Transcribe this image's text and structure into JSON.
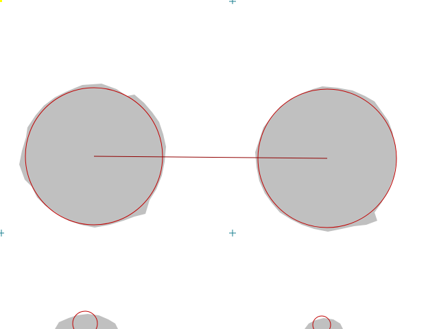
{
  "colors": {
    "background": "#ffffff",
    "blob_fill": "#c0c0c0",
    "fit_circle_stroke": "#c00000",
    "link_line_stroke": "#900000",
    "crosshair_stroke": "#1a7f8f",
    "corner_marker": "#ffff00"
  },
  "icons": {
    "crosshair": "crosshair-icon"
  }
}
